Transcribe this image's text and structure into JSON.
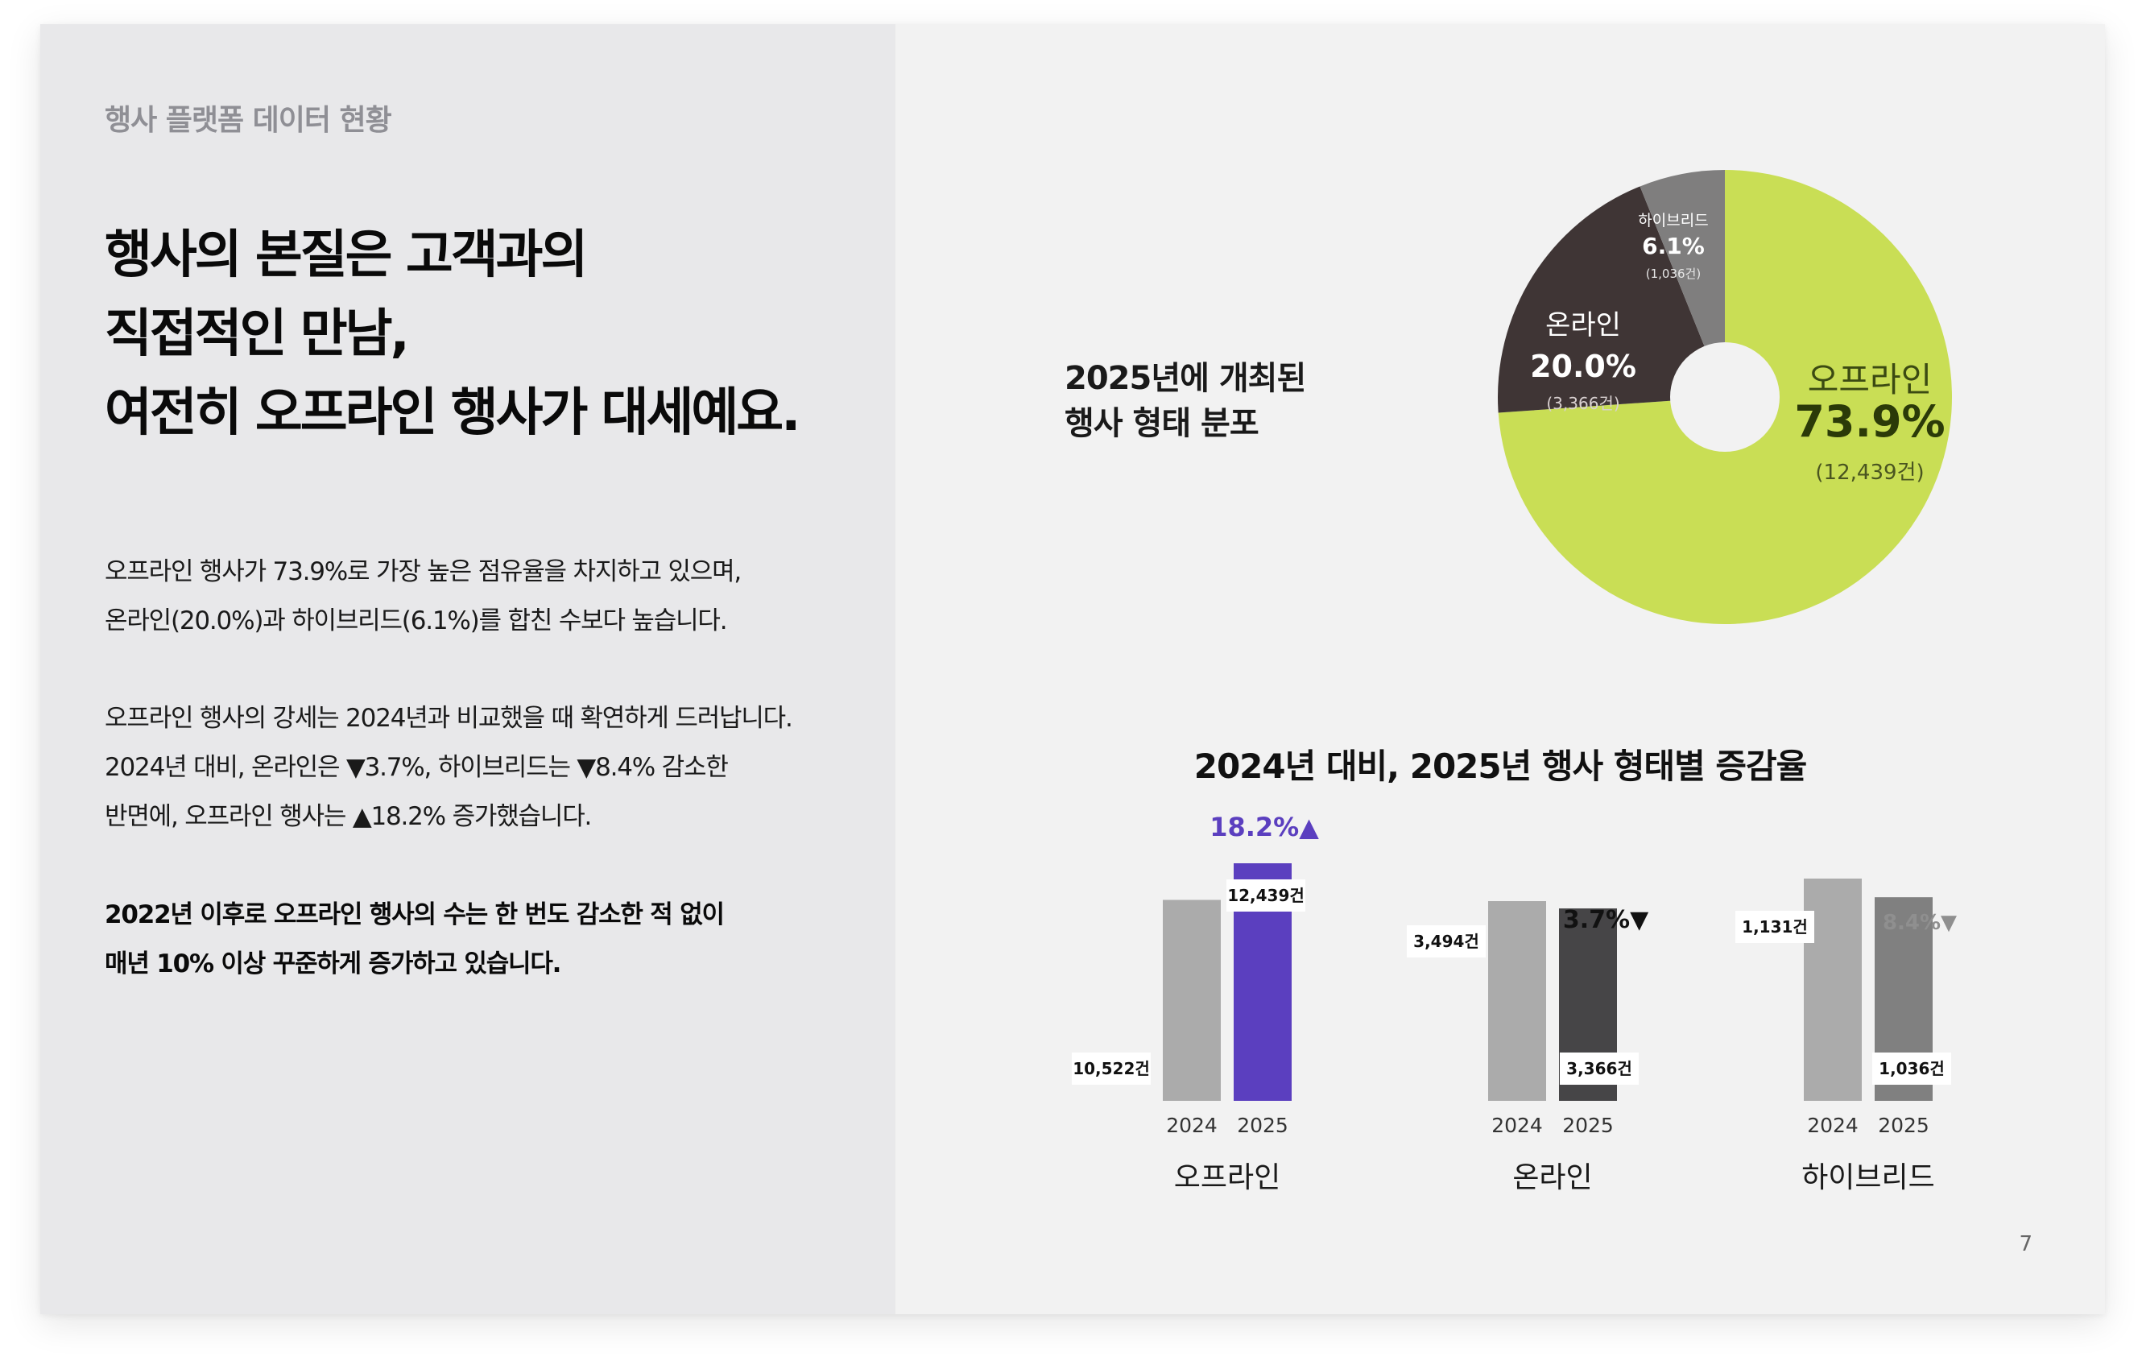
{
  "header": {
    "section_label": "행사 플랫폼 데이터 현황"
  },
  "headline": [
    "행사의 본질은 고객과의",
    "직접적인 만남,",
    "여전히 오프라인 행사가 대세예요."
  ],
  "paragraphs": {
    "p1": [
      "오프라인 행사가 73.9%로 가장 높은 점유율을 차지하고 있으며,",
      "온라인(20.0%)과 하이브리드(6.1%)를 합친 수보다 높습니다."
    ],
    "p2": [
      "오프라인 행사의 강세는 2024년과 비교했을 때 확연하게 드러납니다.",
      "2024년 대비, 온라인은 ▼3.7%, 하이브리드는 ▼8.4% 감소한",
      "반면에, 오프라인 행사는 ▲18.2% 증가했습니다."
    ],
    "p3": [
      "2022년 이후로 오프라인 행사의 수는 한 번도 감소한 적 없이",
      "매년 10% 이상 꾸준하게 증가하고 있습니다."
    ]
  },
  "pie_title": [
    "2025년에 개최된",
    "행사 형태 분포"
  ],
  "bar_title": "2024년 대비, 2025년 행사 형태별 증감율",
  "page_number": "7",
  "colors": {
    "offline": "#c9de55",
    "online": "#3f3535",
    "hybrid": "#7f7e7e",
    "bar_2024": "#ababab",
    "offline_2025": "#5b3fbf",
    "online_2025": "#464547",
    "hybrid_2025": "#808080",
    "increase": "#5b3fbf",
    "decrease_dark": "#111111",
    "decrease_gray": "#8f8f8f"
  },
  "chart_data": [
    {
      "type": "pie",
      "donut": true,
      "slices": [
        {
          "name": "오프라인",
          "value": 73.9,
          "percent_label": "73.9%",
          "count_label": "(12,439건)"
        },
        {
          "name": "온라인",
          "value": 20.0,
          "percent_label": "20.0%",
          "count_label": "(3,366건)"
        },
        {
          "name": "하이브리드",
          "value": 6.1,
          "percent_label": "6.1%",
          "count_label": "(1,036건)"
        }
      ]
    },
    {
      "type": "bar",
      "x_labels": [
        "2024",
        "2025"
      ],
      "groups": [
        {
          "name": "오프라인",
          "values": [
            10522,
            12439
          ],
          "value_labels": [
            "10,522건",
            "12,439건"
          ],
          "change_label": "18.2%",
          "change_arrow": "▲"
        },
        {
          "name": "온라인",
          "values": [
            3494,
            3366
          ],
          "value_labels": [
            "3,494건",
            "3,366건"
          ],
          "change_label": "3.7%",
          "change_arrow": "▼"
        },
        {
          "name": "하이브리드",
          "values": [
            1131,
            1036
          ],
          "value_labels": [
            "1,131건",
            "1,036건"
          ],
          "change_label": "8.4%",
          "change_arrow": "▼"
        }
      ]
    }
  ]
}
